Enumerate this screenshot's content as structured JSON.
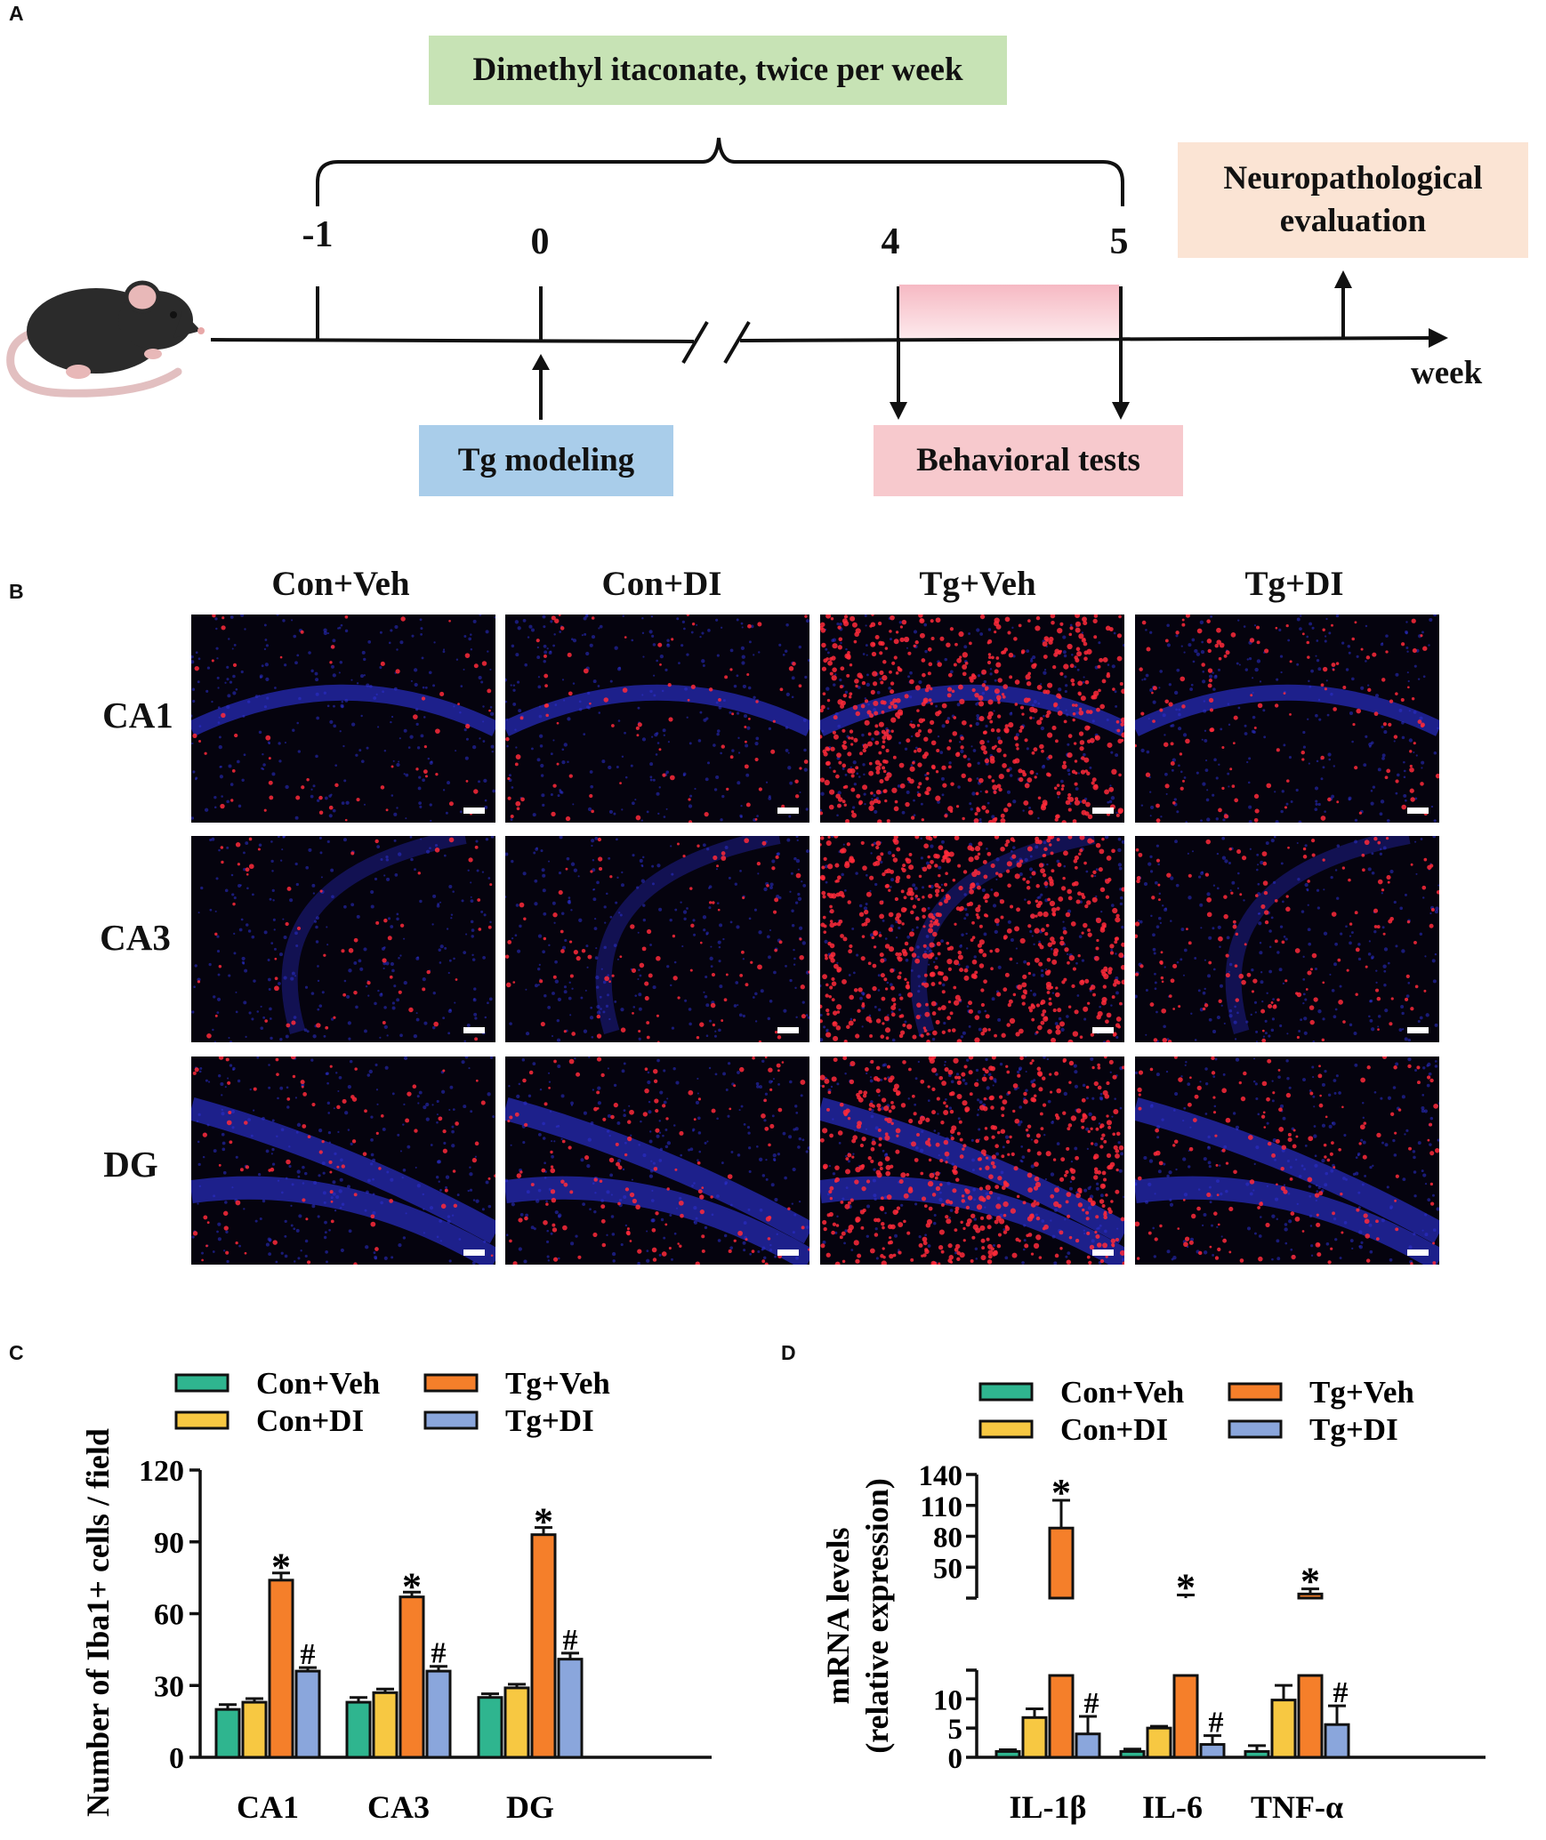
{
  "panel_labels": {
    "a": "A",
    "b": "B",
    "c": "C",
    "d": "D"
  },
  "timeline": {
    "treatment": "Dimethyl itaconate, twice per week",
    "weeks": [
      "-1",
      "0",
      "4",
      "5"
    ],
    "axis_unit": "week",
    "modeling": "Tg modeling",
    "behavioral": "Behavioral tests",
    "evaluation_line1": "Neuropathological",
    "evaluation_line2": "evaluation",
    "colors": {
      "treatment_box": "#c7e3b5",
      "modeling_box": "#a9cdea",
      "behavioral_box": "#f7c9cd",
      "evaluation_box": "#fbe4d4",
      "pink_band": "#f7c3cb"
    }
  },
  "micrographs": {
    "groups": [
      "Con+Veh",
      "Con+DI",
      "Tg+Veh",
      "Tg+DI"
    ],
    "regions": [
      "CA1",
      "CA3",
      "DG"
    ],
    "stain_colors": {
      "nuclei": "#2b2fd0",
      "iba1": "#ff2a3a"
    }
  },
  "chart_data": [
    {
      "type": "bar",
      "panel": "C",
      "ylabel": "Number of Iba1+ cells / field",
      "categories": [
        "CA1",
        "CA3",
        "DG"
      ],
      "ylim": [
        0,
        120
      ],
      "yticks": [
        "0",
        "30",
        "60",
        "90",
        "120"
      ],
      "series": [
        {
          "name": "Con+Veh",
          "color": "#2fb58f",
          "values": [
            20,
            23,
            25
          ],
          "errors": [
            2,
            2,
            1.5
          ]
        },
        {
          "name": "Con+DI",
          "color": "#f7c842",
          "values": [
            23,
            27,
            29
          ],
          "errors": [
            1.5,
            1.5,
            1.5
          ]
        },
        {
          "name": "Tg+Veh",
          "color": "#f57f2a",
          "values": [
            74,
            67,
            93
          ],
          "errors": [
            3,
            2,
            3
          ]
        },
        {
          "name": "Tg+DI",
          "color": "#8aa6dc",
          "values": [
            36,
            36,
            41
          ],
          "errors": [
            1.5,
            2,
            2.5
          ]
        }
      ],
      "annotations": {
        "Tg+Veh": [
          "*",
          "*",
          "*"
        ],
        "Tg+DI": [
          "#",
          "#",
          "#"
        ]
      }
    },
    {
      "type": "bar",
      "panel": "D",
      "ylabel_line1": "mRNA levels",
      "ylabel_line2": "(relative expression)",
      "categories": [
        "IL-1β",
        "IL-6",
        "TNF-α"
      ],
      "broken_axis": {
        "lower": [
          0,
          14
        ],
        "upper": [
          20,
          140
        ]
      },
      "yticks_lower": [
        "0",
        "5",
        "10"
      ],
      "yticks_upper": [
        "50",
        "80",
        "110",
        "140"
      ],
      "series": [
        {
          "name": "Con+Veh",
          "color": "#2fb58f",
          "values": [
            1,
            1,
            1
          ],
          "errors": [
            0.3,
            0.4,
            1
          ]
        },
        {
          "name": "Con+DI",
          "color": "#f7c842",
          "values": [
            6.8,
            5,
            9.8
          ],
          "errors": [
            1.5,
            0.3,
            2.5
          ]
        },
        {
          "name": "Tg+Veh",
          "color": "#f57f2a",
          "values": [
            88,
            20,
            24
          ],
          "errors": [
            27,
            3,
            5
          ]
        },
        {
          "name": "Tg+DI",
          "color": "#8aa6dc",
          "values": [
            4,
            2.2,
            5.6
          ],
          "errors": [
            3,
            1.5,
            3.2
          ]
        }
      ],
      "annotations": {
        "Tg+Veh": [
          "*",
          "*",
          "*"
        ],
        "Tg+DI": [
          "#",
          "#",
          "#"
        ]
      }
    }
  ]
}
